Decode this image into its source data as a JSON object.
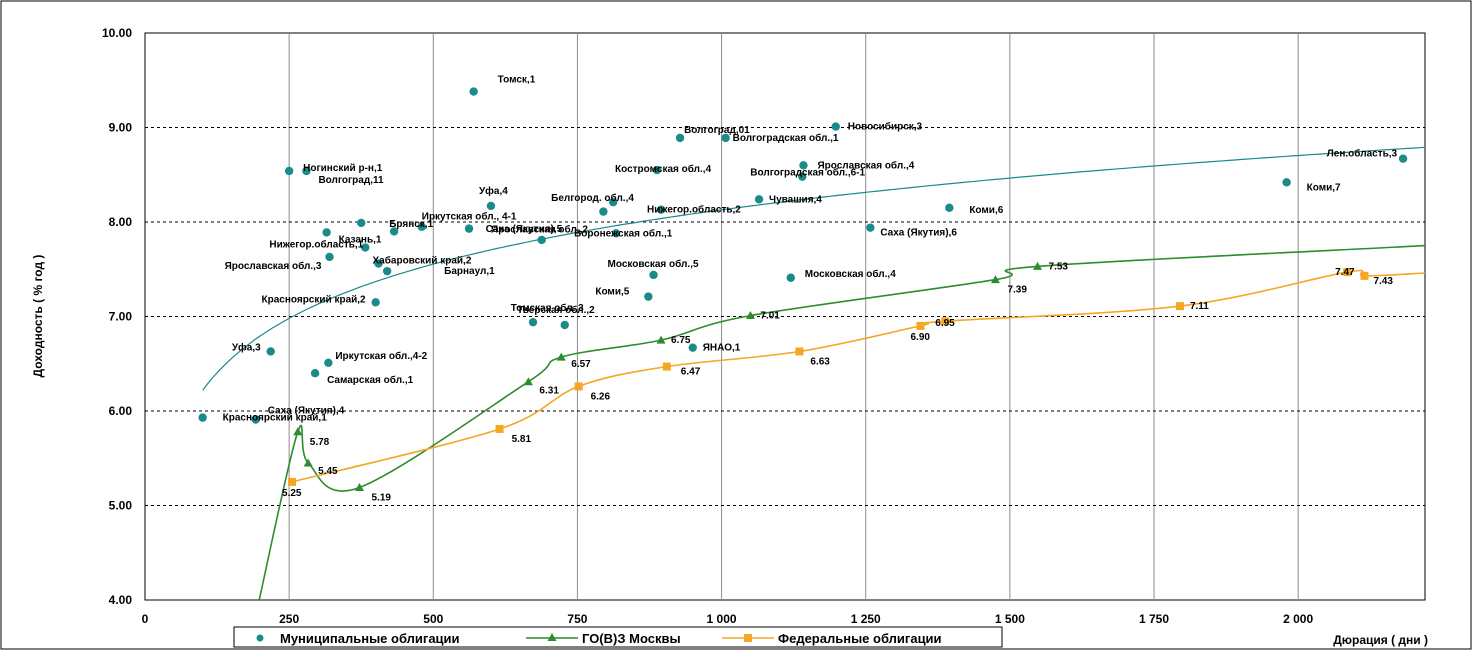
{
  "chart_data": {
    "type": "scatter",
    "xlabel": "Дюрация ( дни )",
    "ylabel": "Доходность ( % год )",
    "xlim": [
      0,
      2220
    ],
    "ylim": [
      4,
      10
    ],
    "x_ticks": [
      {
        "v": 0,
        "label": "0"
      },
      {
        "v": 250,
        "label": "250"
      },
      {
        "v": 500,
        "label": "500"
      },
      {
        "v": 750,
        "label": "750"
      },
      {
        "v": 1000,
        "label": "1 000"
      },
      {
        "v": 1250,
        "label": "1 250"
      },
      {
        "v": 1500,
        "label": "1 500"
      },
      {
        "v": 1750,
        "label": "1 750"
      },
      {
        "v": 2000,
        "label": "2 000"
      }
    ],
    "y_ticks": [
      {
        "v": 4,
        "label": "4.00"
      },
      {
        "v": 5,
        "label": "5.00"
      },
      {
        "v": 6,
        "label": "6.00"
      },
      {
        "v": 7,
        "label": "7.00"
      },
      {
        "v": 8,
        "label": "8.00"
      },
      {
        "v": 9,
        "label": "9.00"
      },
      {
        "v": 10,
        "label": "10.00"
      }
    ],
    "grid": true,
    "legend_position": "bottom",
    "colors": {
      "municipal": "#1a8a8a",
      "moscow": "#2e8b2e",
      "federal": "#f5a623",
      "trend": "#1a8a8a"
    },
    "series": [
      {
        "name": "Муниципальные облигации",
        "marker": "circle",
        "points": [
          {
            "x": 100,
            "y": 5.93,
            "label": "Красноярский край,1"
          },
          {
            "x": 192,
            "y": 5.91,
            "label": "Саха (Якутия),4"
          },
          {
            "x": 218,
            "y": 6.63,
            "label": "Уфа,3"
          },
          {
            "x": 250,
            "y": 8.54,
            "label": "Ногинский р-н,1"
          },
          {
            "x": 280,
            "y": 8.54,
            "label": "Волгоград,11"
          },
          {
            "x": 295,
            "y": 6.4,
            "label": "Самарская обл.,1"
          },
          {
            "x": 315,
            "y": 7.89,
            "label": "Казань,1"
          },
          {
            "x": 318,
            "y": 6.51,
            "label": "Иркутская обл.,4-2"
          },
          {
            "x": 320,
            "y": 7.63,
            "label": "Ярославская обл.,3"
          },
          {
            "x": 375,
            "y": 7.99,
            "label": "Брянск,1"
          },
          {
            "x": 382,
            "y": 7.73,
            "label": "Нижегор.область,1"
          },
          {
            "x": 400,
            "y": 7.15,
            "label": "Красноярский край,2"
          },
          {
            "x": 405,
            "y": 7.56,
            "label": "Хабаровский край,2"
          },
          {
            "x": 420,
            "y": 7.48,
            "label": "Барнаул,1"
          },
          {
            "x": 432,
            "y": 7.9,
            "label": ""
          },
          {
            "x": 480,
            "y": 7.95,
            "label": "Иркутская обл., 4-1"
          },
          {
            "x": 562,
            "y": 7.93,
            "label": "Ярославская обл.,2"
          },
          {
            "x": 570,
            "y": 9.38,
            "label": "Томск,1"
          },
          {
            "x": 600,
            "y": 8.17,
            "label": "Уфа,4"
          },
          {
            "x": 673,
            "y": 6.94,
            "label": "Тверская обл.,2"
          },
          {
            "x": 688,
            "y": 7.81,
            "label": "Саха (Якутия),5"
          },
          {
            "x": 728,
            "y": 6.91,
            "label": "Томская обл.,3"
          },
          {
            "x": 795,
            "y": 8.11,
            "label": ""
          },
          {
            "x": 812,
            "y": 8.21,
            "label": "Белгород. обл.,4"
          },
          {
            "x": 817,
            "y": 7.88,
            "label": "Воронежская обл.,1"
          },
          {
            "x": 873,
            "y": 7.21,
            "label": "Коми,5"
          },
          {
            "x": 882,
            "y": 7.44,
            "label": "Московская обл.,5"
          },
          {
            "x": 888,
            "y": 8.55,
            "label": "Костромская обл.,4"
          },
          {
            "x": 895,
            "y": 8.13,
            "label": "Нижегор.область,2"
          },
          {
            "x": 928,
            "y": 8.89,
            "label": "Волгоград,01"
          },
          {
            "x": 950,
            "y": 6.67,
            "label": "ЯНАО,1"
          },
          {
            "x": 1007,
            "y": 8.89,
            "label": "Волгоградская обл.,1"
          },
          {
            "x": 1065,
            "y": 8.24,
            "label": "Чувашия,4"
          },
          {
            "x": 1120,
            "y": 7.41,
            "label": "Московская обл.,4"
          },
          {
            "x": 1140,
            "y": 8.48,
            "label": "Волгоградская обл.,6-1"
          },
          {
            "x": 1142,
            "y": 8.6,
            "label": "Ярославская обл.,4"
          },
          {
            "x": 1198,
            "y": 9.01,
            "label": "Новосибирск,3"
          },
          {
            "x": 1258,
            "y": 7.94,
            "label": "Саха (Якутия),6"
          },
          {
            "x": 1395,
            "y": 8.15,
            "label": "Коми,6"
          },
          {
            "x": 1980,
            "y": 8.42,
            "label": "Коми,7"
          },
          {
            "x": 2182,
            "y": 8.67,
            "label": "Лен.область,3"
          }
        ]
      },
      {
        "name": "ГО(В)З Москвы",
        "marker": "triangle",
        "points": [
          {
            "x": 265,
            "y": 5.78,
            "label": "5.78"
          },
          {
            "x": 283,
            "y": 5.45,
            "label": "5.45"
          },
          {
            "x": 372,
            "y": 5.19,
            "label": "5.19"
          },
          {
            "x": 665,
            "y": 6.31,
            "label": "6.31"
          },
          {
            "x": 722,
            "y": 6.57,
            "label": "6.57"
          },
          {
            "x": 895,
            "y": 6.75,
            "label": "6.75"
          },
          {
            "x": 1050,
            "y": 7.01,
            "label": "7.01"
          },
          {
            "x": 1475,
            "y": 7.39,
            "label": "7.39"
          },
          {
            "x": 1548,
            "y": 7.53,
            "label": "7.53"
          }
        ]
      },
      {
        "name": "Федеральные облигации",
        "marker": "square",
        "points": [
          {
            "x": 255,
            "y": 5.25,
            "label": "5.25"
          },
          {
            "x": 615,
            "y": 5.81,
            "label": "5.81"
          },
          {
            "x": 752,
            "y": 6.26,
            "label": "6.26"
          },
          {
            "x": 905,
            "y": 6.47,
            "label": "6.47"
          },
          {
            "x": 1135,
            "y": 6.63,
            "label": "6.63"
          },
          {
            "x": 1345,
            "y": 6.9,
            "label": "6.90"
          },
          {
            "x": 1388,
            "y": 6.95,
            "label": "6.95"
          },
          {
            "x": 1795,
            "y": 7.11,
            "label": "7.11"
          },
          {
            "x": 2085,
            "y": 7.47,
            "label": "7.47"
          },
          {
            "x": 2115,
            "y": 7.43,
            "label": "7.43"
          }
        ]
      }
    ]
  }
}
